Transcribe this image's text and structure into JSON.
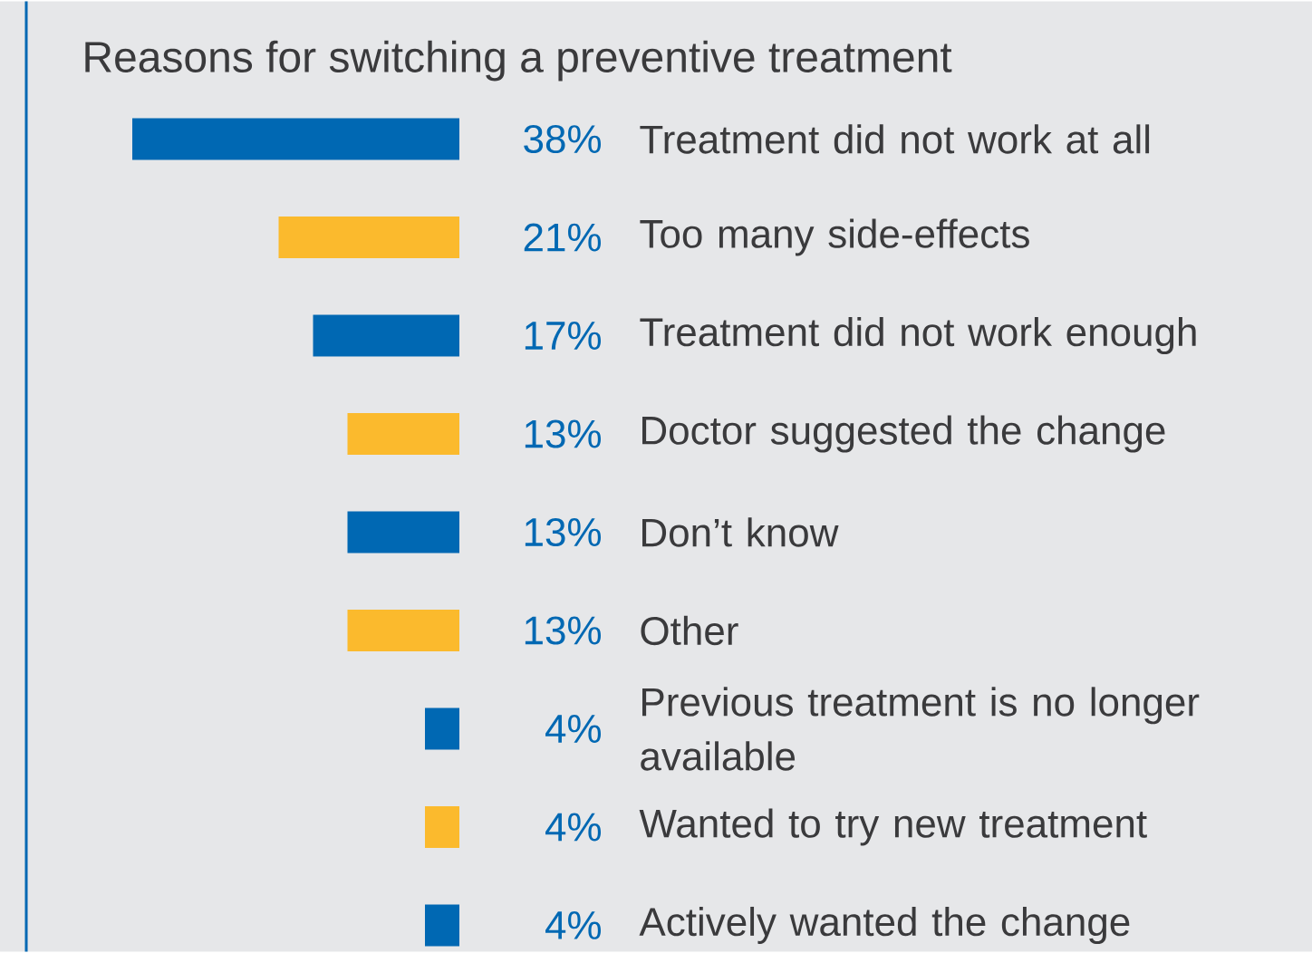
{
  "chart_data": {
    "type": "bar",
    "orientation": "horizontal",
    "title": "Reasons for switching a preventive treatment",
    "categories": [
      "Treatment did not work at all",
      "Too many side-effects",
      "Treatment did not work enough",
      "Doctor suggested the change",
      "Don’t know",
      "Other",
      "Previous treatment is no longer available",
      "Wanted to try new treatment",
      "Actively wanted the change"
    ],
    "values": [
      38,
      21,
      17,
      13,
      13,
      13,
      4,
      4,
      4
    ],
    "value_labels": [
      "38%",
      "21%",
      "17%",
      "13%",
      "13%",
      "13%",
      "4%",
      "4%",
      "4%"
    ],
    "colors": [
      "#0068b3",
      "#fbba2d",
      "#0068b3",
      "#fbba2d",
      "#0068b3",
      "#fbba2d",
      "#0068b3",
      "#fbba2d",
      "#0068b3"
    ]
  }
}
